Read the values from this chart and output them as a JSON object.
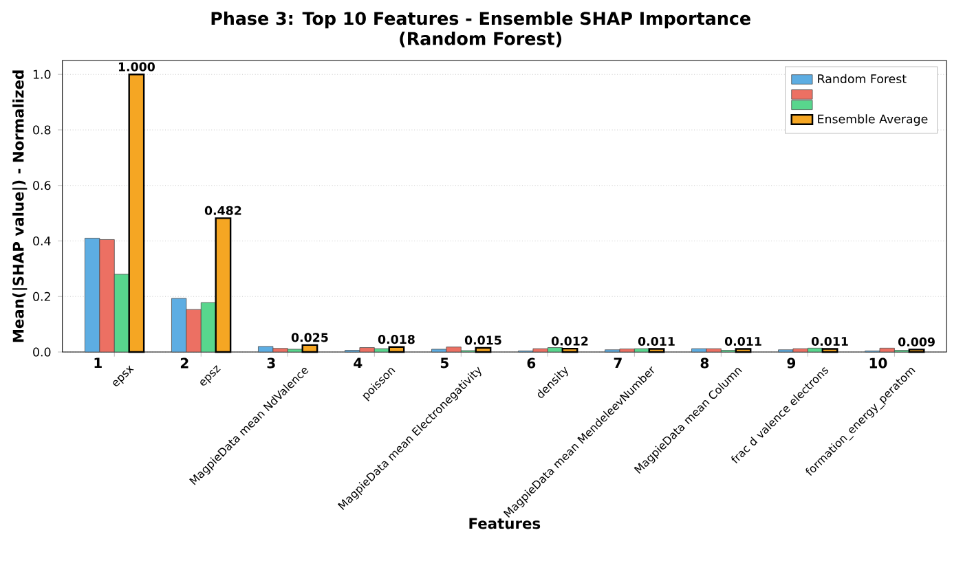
{
  "chart_data": {
    "type": "bar",
    "title": "Phase 3: Top 10 Features - Ensemble SHAP Importance",
    "subtitle": "(Random Forest)",
    "xlabel": "Features",
    "ylabel": "Mean(|SHAP value|) - Normalized",
    "categories": [
      "epsx",
      "epsz",
      "MagpieData mean NdValence",
      "poisson",
      "MagpieData mean Electronegativity",
      "density",
      "MagpieData mean MendeleevNumber",
      "MagpieData mean Column",
      "frac d valence electrons",
      "formation_energy_peratom"
    ],
    "series": [
      {
        "name": "Random Forest",
        "color": "#5dade2",
        "values": [
          0.41,
          0.193,
          0.02,
          0.006,
          0.01,
          0.004,
          0.008,
          0.012,
          0.008,
          0.004
        ]
      },
      {
        "color": "#ec7063",
        "values": [
          0.405,
          0.153,
          0.013,
          0.016,
          0.018,
          0.012,
          0.011,
          0.012,
          0.012,
          0.014
        ]
      },
      {
        "color": "#58d68d",
        "values": [
          0.28,
          0.178,
          0.01,
          0.012,
          0.005,
          0.016,
          0.012,
          0.006,
          0.014,
          0.006
        ]
      },
      {
        "name": "Ensemble Average",
        "color": "#f5a623",
        "values": [
          1.0,
          0.482,
          0.025,
          0.018,
          0.015,
          0.012,
          0.011,
          0.011,
          0.011,
          0.009
        ],
        "value_labels": [
          "1.000",
          "0.482",
          "0.025",
          "0.018",
          "0.015",
          "0.012",
          "0.011",
          "0.011",
          "0.011",
          "0.009"
        ]
      }
    ],
    "annotations": [
      {
        "text": "1",
        "x": "epsx",
        "y": 0
      },
      {
        "text": "2",
        "x": "epsz",
        "y": 0
      },
      {
        "text": "3",
        "x": "MagpieData mean NdValence",
        "y": 0
      },
      {
        "text": "4",
        "x": "poisson",
        "y": 0
      },
      {
        "text": "5",
        "x": "MagpieData mean Electronegativity",
        "y": 0
      },
      {
        "text": "6",
        "x": "density",
        "y": 0
      },
      {
        "text": "7",
        "x": "MagpieData mean MendeleevNumber",
        "y": 0
      },
      {
        "text": "8",
        "x": "MagpieData mean Column",
        "y": 0
      },
      {
        "text": "9",
        "x": "frac d valence electrons",
        "y": 0
      },
      {
        "text": "10",
        "x": "formation_energy_peratom",
        "y": 0
      }
    ],
    "ylim": [
      0,
      1.05
    ],
    "yticks": [
      {
        "value": 0,
        "label": "0.0"
      },
      {
        "value": 0.2,
        "label": "0.2"
      },
      {
        "value": 0.4,
        "label": "0.4"
      },
      {
        "value": 0.6,
        "label": "0.6"
      },
      {
        "value": 0.8,
        "label": "0.8"
      },
      {
        "value": 1.0,
        "label": "1.0"
      }
    ],
    "grid": "y",
    "legend": "top right"
  }
}
